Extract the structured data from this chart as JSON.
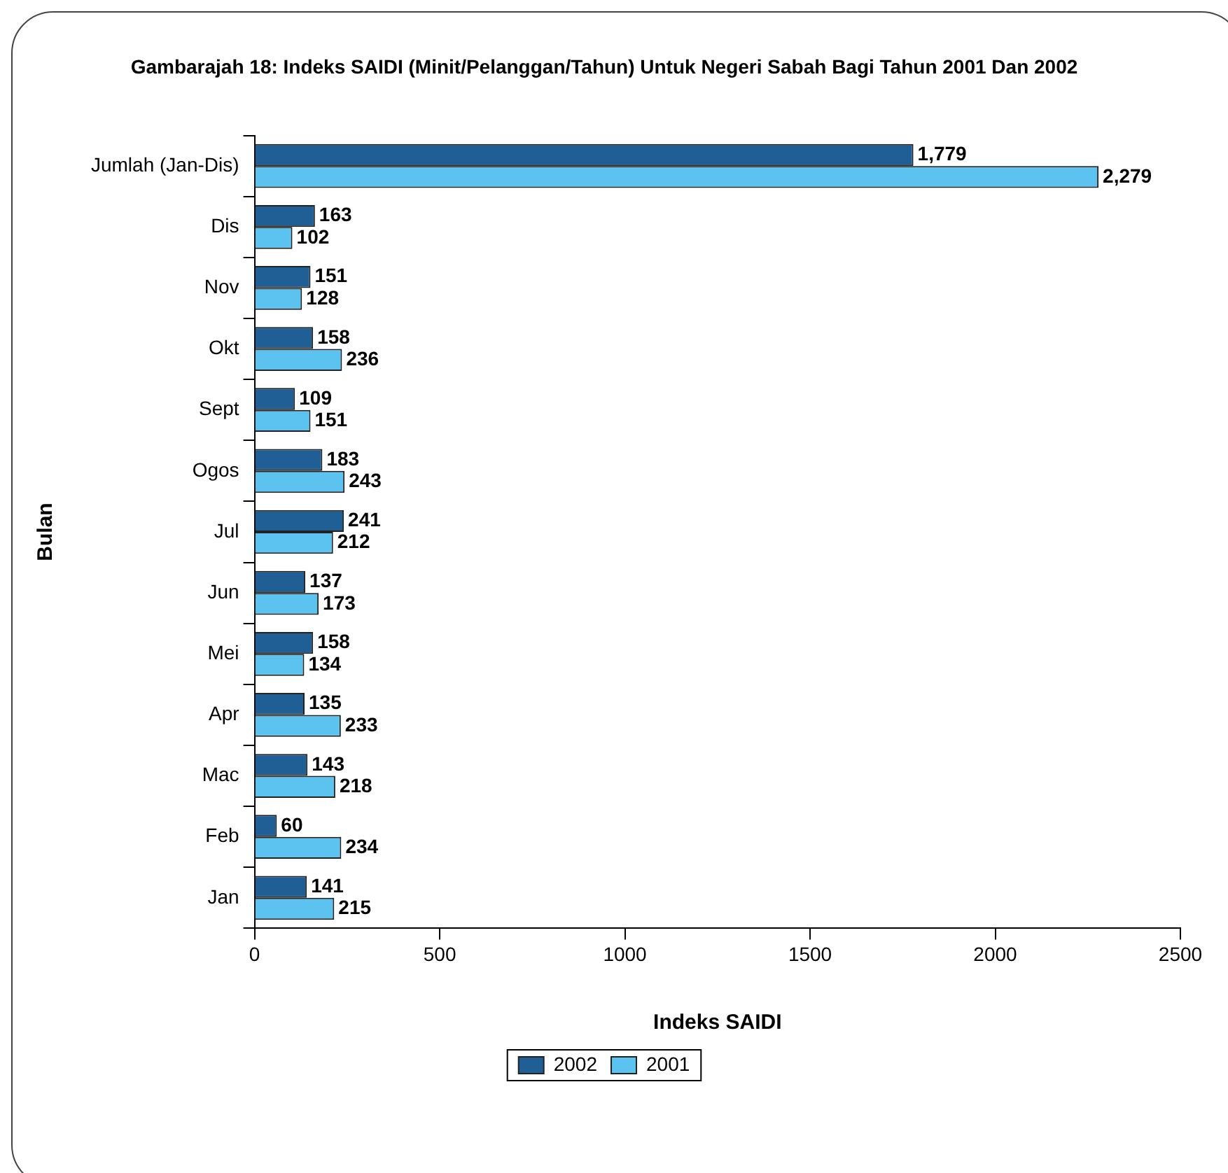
{
  "chart_data": {
    "type": "bar",
    "orientation": "horizontal",
    "title": "Gambarajah 18: Indeks SAIDI (Minit/Pelanggan/Tahun) Untuk Negeri Sabah Bagi Tahun 2001 Dan 2002",
    "xlabel": "Indeks SAIDI",
    "ylabel": "Bulan",
    "categories": [
      "Jumlah (Jan-Dis)",
      "Dis",
      "Nov",
      "Okt",
      "Sept",
      "Ogos",
      "Jul",
      "Jun",
      "Mei",
      "Apr",
      "Mac",
      "Feb",
      "Jan"
    ],
    "series": [
      {
        "name": "2002",
        "color": "#1f5f95",
        "values": [
          1779,
          163,
          151,
          158,
          109,
          183,
          241,
          137,
          158,
          135,
          143,
          60,
          141
        ],
        "value_labels": [
          "1,779",
          "163",
          "151",
          "158",
          "109",
          "183",
          "241",
          "137",
          "158",
          "135",
          "143",
          "60",
          "141"
        ]
      },
      {
        "name": "2001",
        "color": "#5cc3f0",
        "values": [
          2279,
          102,
          128,
          236,
          151,
          243,
          212,
          173,
          134,
          233,
          218,
          234,
          215
        ],
        "value_labels": [
          "2,279",
          "102",
          "128",
          "236",
          "151",
          "243",
          "212",
          "173",
          "134",
          "233",
          "218",
          "234",
          "215"
        ]
      }
    ],
    "xlim": [
      0,
      2500
    ],
    "xticks": [
      0,
      500,
      1000,
      1500,
      2000,
      2500
    ],
    "grid": false,
    "legend": "bottom"
  }
}
